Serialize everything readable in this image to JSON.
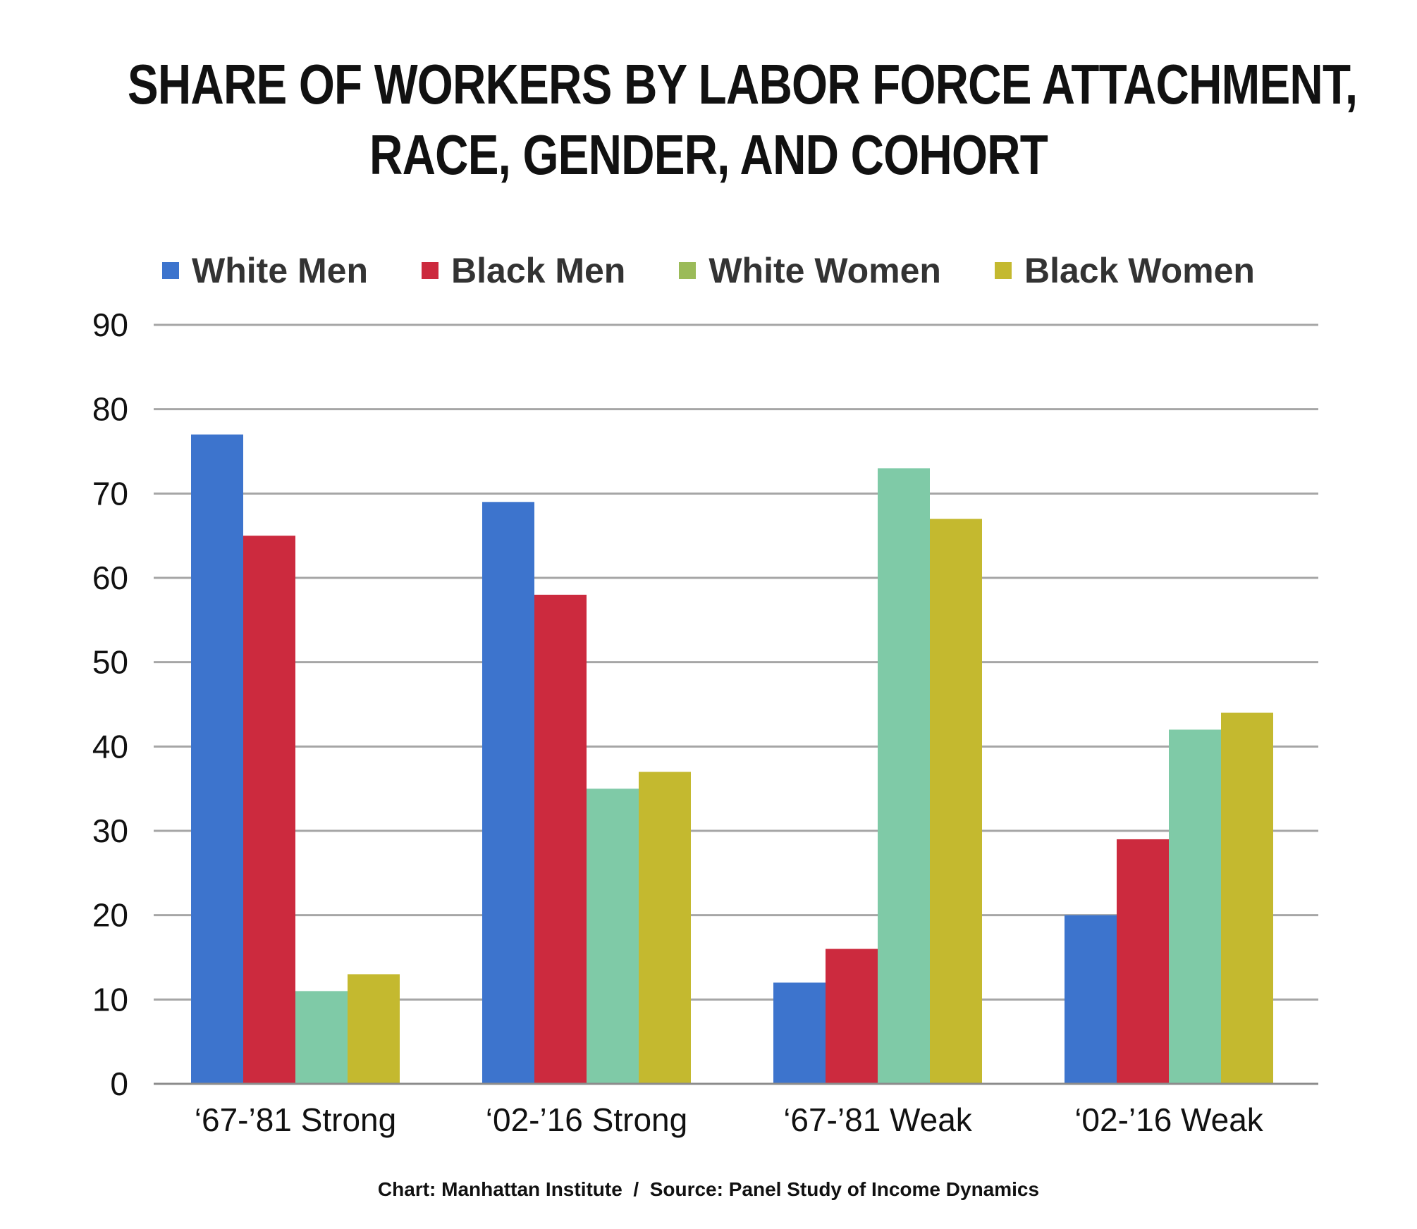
{
  "chart_data": {
    "type": "bar",
    "title_lines": [
      "SHARE OF WORKERS BY LABOR FORCE ATTACHMENT,",
      "RACE, GENDER, AND COHORT"
    ],
    "categories": [
      "‘67-’81 Strong",
      "‘02-’16 Strong",
      "‘67-’81 Weak",
      "‘02-’16 Weak"
    ],
    "series": [
      {
        "name": "White Men",
        "legend_color": "#3d74cd",
        "bar_color": "#3d74cd",
        "values": [
          77,
          69,
          12,
          20
        ]
      },
      {
        "name": "Black Men",
        "legend_color": "#cc2a3e",
        "bar_color": "#cc2a3e",
        "values": [
          65,
          58,
          16,
          29
        ]
      },
      {
        "name": "White Women",
        "legend_color": "#9bbb59",
        "bar_color": "#7fcaa7",
        "values": [
          11,
          35,
          73,
          42
        ]
      },
      {
        "name": "Black Women",
        "legend_color": "#c4b92f",
        "bar_color": "#c4b92f",
        "values": [
          13,
          37,
          67,
          44
        ]
      }
    ],
    "ylim": [
      0,
      90
    ],
    "yticks": [
      0,
      10,
      20,
      30,
      40,
      50,
      60,
      70,
      80,
      90
    ],
    "grid": true,
    "legend_position": "top",
    "source": "Chart: Manhattan Institute  /  Source: Panel Study of Income Dynamics"
  }
}
